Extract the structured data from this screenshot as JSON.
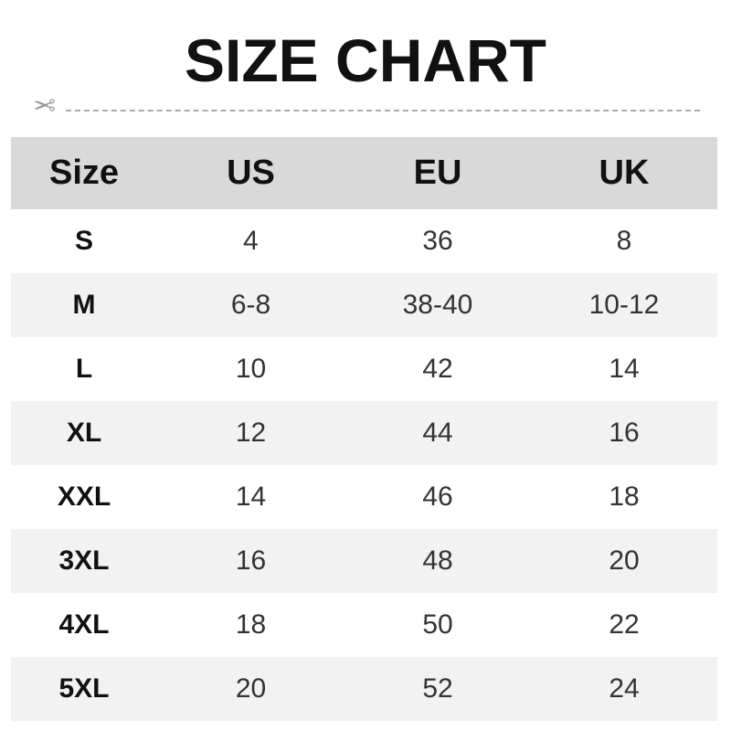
{
  "title": "SIZE CHART",
  "colors": {
    "header_bg": "#d9d9d9",
    "stripe_bg": "#f2f2f2",
    "cutline": "#aaaaaa"
  },
  "cutline_icon": "scissors-icon",
  "table": {
    "headers": [
      "Size",
      "US",
      "EU",
      "UK"
    ],
    "rows": [
      [
        "S",
        "4",
        "36",
        "8"
      ],
      [
        "M",
        "6-8",
        "38-40",
        "10-12"
      ],
      [
        "L",
        "10",
        "42",
        "14"
      ],
      [
        "XL",
        "12",
        "44",
        "16"
      ],
      [
        "XXL",
        "14",
        "46",
        "18"
      ],
      [
        "3XL",
        "16",
        "48",
        "20"
      ],
      [
        "4XL",
        "18",
        "50",
        "22"
      ],
      [
        "5XL",
        "20",
        "52",
        "24"
      ]
    ]
  }
}
